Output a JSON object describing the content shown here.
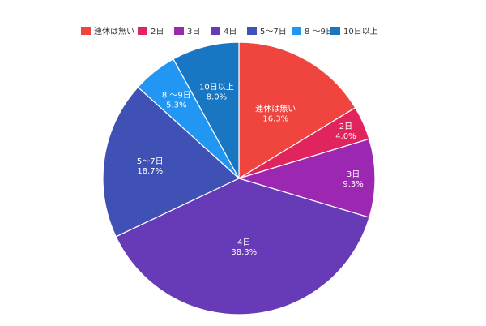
{
  "chart_data": {
    "type": "pie",
    "categories": [
      "連休は無い",
      "2日",
      "3日",
      "4日",
      "5〜7日",
      "8 〜9日",
      "10日以上"
    ],
    "values": [
      16.3,
      4.0,
      9.3,
      38.3,
      18.7,
      5.3,
      8.0
    ],
    "value_labels": [
      "16.3%",
      "4.0%",
      "9.3%",
      "38.3%",
      "18.7%",
      "5.3%",
      "8.0%"
    ],
    "colors": [
      "#f0453f",
      "#e0245e",
      "#9c27b0",
      "#673ab7",
      "#3f51b5",
      "#2196f3",
      "#1976c2"
    ],
    "start_angle": "12 o'clock",
    "direction": "clockwise",
    "legend_position": "top"
  }
}
